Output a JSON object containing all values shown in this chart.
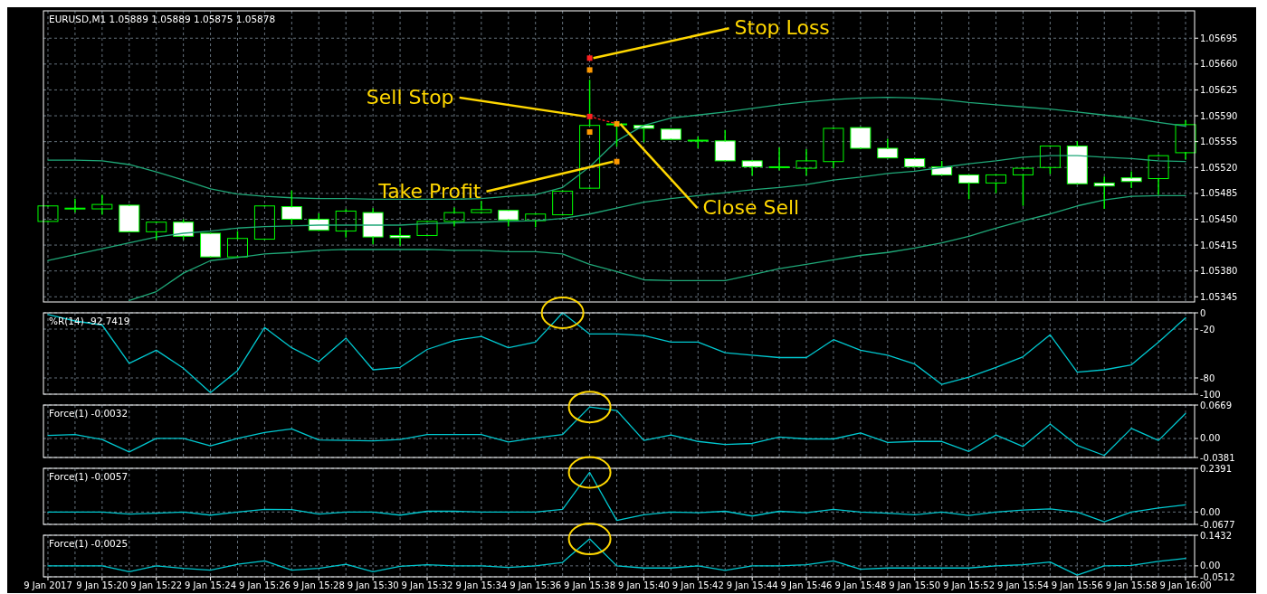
{
  "chart_data": [
    {
      "type": "candlestick",
      "title": "EURUSD,M1  1.05889 1.05889 1.05875 1.05878",
      "color": "#00ff00",
      "grid": true,
      "tick_labels": "y",
      "x": [
        "2017-01-09T15:18",
        "2017-01-09T15:19",
        "2017-01-09T15:20",
        "2017-01-09T15:21",
        "2017-01-09T15:22",
        "2017-01-09T15:23",
        "2017-01-09T15:24",
        "2017-01-09T15:25",
        "2017-01-09T15:26",
        "2017-01-09T15:27",
        "2017-01-09T15:28",
        "2017-01-09T15:29",
        "2017-01-09T15:30",
        "2017-01-09T15:31",
        "2017-01-09T15:32",
        "2017-01-09T15:33",
        "2017-01-09T15:34",
        "2017-01-09T15:35",
        "2017-01-09T15:36",
        "2017-01-09T15:37",
        "2017-01-09T15:38",
        "2017-01-09T15:39",
        "2017-01-09T15:40",
        "2017-01-09T15:41",
        "2017-01-09T15:42",
        "2017-01-09T15:43",
        "2017-01-09T15:44",
        "2017-01-09T15:45",
        "2017-01-09T15:46",
        "2017-01-09T15:47",
        "2017-01-09T15:48",
        "2017-01-09T15:49",
        "2017-01-09T15:50",
        "2017-01-09T15:51",
        "2017-01-09T15:52",
        "2017-01-09T15:53",
        "2017-01-09T15:54",
        "2017-01-09T15:55",
        "2017-01-09T15:56",
        "2017-01-09T15:57",
        "2017-01-09T15:58",
        "2017-01-09T15:59",
        "2017-01-09T16:00"
      ],
      "ohlc": [
        [
          1.05447,
          1.05468,
          1.05447,
          1.05468
        ],
        [
          1.05465,
          1.05477,
          1.0546,
          1.05465
        ],
        [
          1.05464,
          1.05482,
          1.05457,
          1.0547
        ],
        [
          1.05469,
          1.05469,
          1.05433,
          1.05433
        ],
        [
          1.05433,
          1.05446,
          1.05423,
          1.05446
        ],
        [
          1.05446,
          1.05449,
          1.05423,
          1.05427
        ],
        [
          1.05431,
          1.05431,
          1.05399,
          1.05399
        ],
        [
          1.05399,
          1.05433,
          1.05399,
          1.05424
        ],
        [
          1.05423,
          1.05468,
          1.05423,
          1.05468
        ],
        [
          1.05467,
          1.05488,
          1.05444,
          1.0545
        ],
        [
          1.0545,
          1.05457,
          1.05435,
          1.05435
        ],
        [
          1.05434,
          1.05463,
          1.05426,
          1.05461
        ],
        [
          1.05459,
          1.05464,
          1.05417,
          1.05426
        ],
        [
          1.05428,
          1.05438,
          1.05415,
          1.05425
        ],
        [
          1.05428,
          1.05447,
          1.05428,
          1.05447
        ],
        [
          1.05447,
          1.05465,
          1.05441,
          1.05459
        ],
        [
          1.05459,
          1.05474,
          1.05459,
          1.05463
        ],
        [
          1.05462,
          1.05462,
          1.05441,
          1.05449
        ],
        [
          1.05448,
          1.05457,
          1.0544,
          1.05457
        ],
        [
          1.05456,
          1.05488,
          1.05456,
          1.05488
        ],
        [
          1.05492,
          1.05638,
          1.05492,
          1.05577
        ],
        [
          1.05579,
          1.05579,
          1.05549,
          1.05579
        ],
        [
          1.05577,
          1.05577,
          1.05555,
          1.05573
        ],
        [
          1.05572,
          1.05572,
          1.05558,
          1.05558
        ],
        [
          1.05557,
          1.05561,
          1.05547,
          1.05557
        ],
        [
          1.05556,
          1.0557,
          1.05529,
          1.05529
        ],
        [
          1.05529,
          1.05529,
          1.0551,
          1.05521
        ],
        [
          1.05521,
          1.05546,
          1.05517,
          1.05521
        ],
        [
          1.05519,
          1.05544,
          1.0551,
          1.05529
        ],
        [
          1.05528,
          1.05573,
          1.0552,
          1.05573
        ],
        [
          1.05574,
          1.05574,
          1.05546,
          1.05546
        ],
        [
          1.05546,
          1.05558,
          1.05533,
          1.05533
        ],
        [
          1.05532,
          1.05532,
          1.05521,
          1.05521
        ],
        [
          1.05521,
          1.05528,
          1.0551,
          1.0551
        ],
        [
          1.0551,
          1.0551,
          1.05478,
          1.05499
        ],
        [
          1.05499,
          1.0551,
          1.05486,
          1.0551
        ],
        [
          1.0551,
          1.05519,
          1.05469,
          1.05519
        ],
        [
          1.0552,
          1.05549,
          1.05512,
          1.05549
        ],
        [
          1.05549,
          1.05555,
          1.05498,
          1.05498
        ],
        [
          1.05499,
          1.05507,
          1.05465,
          1.05495
        ],
        [
          1.05506,
          1.05514,
          1.05493,
          1.05501
        ],
        [
          1.05505,
          1.05536,
          1.05484,
          1.05536
        ],
        [
          1.0554,
          1.05583,
          1.05532,
          1.05578
        ]
      ],
      "series": [
        {
          "type": "line",
          "color": "#1fa878",
          "values": [
            1.0553,
            1.0553,
            1.05529,
            1.05524,
            1.05514,
            1.05503,
            1.05491,
            1.05484,
            1.05481,
            1.05479,
            1.05478,
            1.05478,
            1.05477,
            1.05477,
            1.05477,
            1.05477,
            1.05478,
            1.05481,
            1.05483,
            1.05493,
            1.05521,
            1.05556,
            1.05577,
            1.05587,
            1.05591,
            1.05595,
            1.056,
            1.05605,
            1.05609,
            1.05612,
            1.05614,
            1.05615,
            1.05614,
            1.05612,
            1.05608,
            1.05605,
            1.05602,
            1.05599,
            1.05595,
            1.05591,
            1.05587,
            1.05581,
            1.05576
          ]
        },
        {
          "type": "line",
          "color": "#1fa878",
          "values": [
            1.05394,
            1.05402,
            1.0541,
            1.05418,
            1.05426,
            1.05431,
            1.05434,
            1.05438,
            1.0544,
            1.05441,
            1.05442,
            1.05442,
            1.05442,
            1.05442,
            1.05444,
            1.05445,
            1.05446,
            1.05447,
            1.05448,
            1.05451,
            1.05457,
            1.05465,
            1.05473,
            1.05478,
            1.05482,
            1.05486,
            1.0549,
            1.05493,
            1.05497,
            1.05503,
            1.05507,
            1.05512,
            1.05515,
            1.0552,
            1.05525,
            1.05529,
            1.05534,
            1.05536,
            1.05536,
            1.05534,
            1.05532,
            1.05529,
            1.05528
          ]
        },
        {
          "type": "line",
          "color": "#1fa878",
          "values": [
            null,
            null,
            null,
            1.0534,
            1.05352,
            1.05377,
            1.05394,
            1.05398,
            1.05403,
            1.05405,
            1.05408,
            1.05409,
            1.05409,
            1.05409,
            1.05409,
            1.05408,
            1.05408,
            1.05406,
            1.05406,
            1.05403,
            1.05389,
            1.05379,
            1.05368,
            1.05367,
            1.05367,
            1.05367,
            1.05375,
            1.05383,
            1.05389,
            1.05395,
            1.05401,
            1.05405,
            1.05411,
            1.05418,
            1.05427,
            1.05438,
            1.05448,
            1.05457,
            1.05468,
            1.05476,
            1.05481,
            1.05482,
            1.05482
          ]
        },
        {
          "type": "scatter",
          "marker": "square",
          "x": [
            "2017-01-09T15:38",
            "2017-01-09T15:38",
            "2017-01-09T15:38",
            "2017-01-09T15:38",
            "2017-01-09T15:39",
            "2017-01-09T15:39"
          ],
          "values": [
            1.05668,
            1.05652,
            1.05589,
            1.05568,
            1.05579,
            1.05528
          ],
          "colors": [
            "#ff2020",
            "#ff9900",
            "#ff2020",
            "#ff9900",
            "#ff9900",
            "#ff9900"
          ]
        },
        {
          "type": "line",
          "line_style": "dotted",
          "color": "#ff2020",
          "x": [
            "2017-01-09T15:38",
            "2017-01-09T15:39"
          ],
          "values": [
            1.05589,
            1.05579
          ]
        }
      ],
      "annotations": [
        {
          "text": "Stop Loss",
          "x": "2017-01-09T15:38",
          "y": 1.05668
        },
        {
          "text": "Sell Stop",
          "x": "2017-01-09T15:38",
          "y": 1.05589
        },
        {
          "text": "Take Profit",
          "x": "2017-01-09T15:39",
          "y": 1.05528
        },
        {
          "text": "Close Sell",
          "x": "2017-01-09T15:39",
          "y": 1.05579
        }
      ],
      "xlim": [
        "2017-01-09T15:17:50",
        "2017-01-09T16:00:20"
      ],
      "xticks": [
        {
          "value": "2017-01-09T15:18",
          "label": null
        },
        {
          "value": "2017-01-09T15:19",
          "label": null
        },
        {
          "value": "2017-01-09T15:20",
          "label": null
        },
        {
          "value": "2017-01-09T15:21",
          "label": null
        },
        {
          "value": "2017-01-09T15:22",
          "label": null
        },
        {
          "value": "2017-01-09T15:23",
          "label": null
        },
        {
          "value": "2017-01-09T15:24",
          "label": null
        },
        {
          "value": "2017-01-09T15:25",
          "label": null
        },
        {
          "value": "2017-01-09T15:26",
          "label": null
        },
        {
          "value": "2017-01-09T15:27",
          "label": null
        },
        {
          "value": "2017-01-09T15:28",
          "label": null
        },
        {
          "value": "2017-01-09T15:29",
          "label": null
        },
        {
          "value": "2017-01-09T15:30",
          "label": null
        },
        {
          "value": "2017-01-09T15:31",
          "label": null
        },
        {
          "value": "2017-01-09T15:32",
          "label": null
        },
        {
          "value": "2017-01-09T15:33",
          "label": null
        },
        {
          "value": "2017-01-09T15:34",
          "label": null
        },
        {
          "value": "2017-01-09T15:35",
          "label": null
        },
        {
          "value": "2017-01-09T15:36",
          "label": null
        },
        {
          "value": "2017-01-09T15:37",
          "label": null
        },
        {
          "value": "2017-01-09T15:38",
          "label": null
        },
        {
          "value": "2017-01-09T15:39",
          "label": null
        },
        {
          "value": "2017-01-09T15:40",
          "label": null
        },
        {
          "value": "2017-01-09T15:41",
          "label": null
        },
        {
          "value": "2017-01-09T15:42",
          "label": null
        },
        {
          "value": "2017-01-09T15:43",
          "label": null
        },
        {
          "value": "2017-01-09T15:44",
          "label": null
        },
        {
          "value": "2017-01-09T15:45",
          "label": null
        },
        {
          "value": "2017-01-09T15:46",
          "label": null
        },
        {
          "value": "2017-01-09T15:47",
          "label": null
        },
        {
          "value": "2017-01-09T15:48",
          "label": null
        },
        {
          "value": "2017-01-09T15:49",
          "label": null
        },
        {
          "value": "2017-01-09T15:50",
          "label": null
        },
        {
          "value": "2017-01-09T15:51",
          "label": null
        },
        {
          "value": "2017-01-09T15:52",
          "label": null
        },
        {
          "value": "2017-01-09T15:53",
          "label": null
        },
        {
          "value": "2017-01-09T15:54",
          "label": null
        },
        {
          "value": "2017-01-09T15:55",
          "label": null
        },
        {
          "value": "2017-01-09T15:56",
          "label": null
        },
        {
          "value": "2017-01-09T15:57",
          "label": null
        },
        {
          "value": "2017-01-09T15:58",
          "label": null
        },
        {
          "value": "2017-01-09T15:59",
          "label": null
        },
        {
          "value": "2017-01-09T16:00",
          "label": null
        }
      ],
      "ylim": [
        1.05338,
        1.05732
      ],
      "yticks": [
        1.05345,
        {
          "value": 1.0538,
          "label": "1.05380"
        },
        1.05415,
        {
          "value": 1.0545,
          "label": "1.05450"
        },
        1.05485,
        {
          "value": 1.0552,
          "label": "1.05520"
        },
        1.05555,
        {
          "value": 1.0559,
          "label": "1.05590"
        },
        1.05625,
        {
          "value": 1.0566,
          "label": "1.05660"
        },
        1.05695
      ]
    },
    {
      "type": "line",
      "title": "%R(14) -92.7419",
      "color": "#00c8d0",
      "grid": true,
      "tick_labels": "y",
      "x": [
        "2017-01-09T15:18",
        "2017-01-09T15:19",
        "2017-01-09T15:20",
        "2017-01-09T15:21",
        "2017-01-09T15:22",
        "2017-01-09T15:23",
        "2017-01-09T15:24",
        "2017-01-09T15:25",
        "2017-01-09T15:26",
        "2017-01-09T15:27",
        "2017-01-09T15:28",
        "2017-01-09T15:29",
        "2017-01-09T15:30",
        "2017-01-09T15:31",
        "2017-01-09T15:32",
        "2017-01-09T15:33",
        "2017-01-09T15:34",
        "2017-01-09T15:35",
        "2017-01-09T15:36",
        "2017-01-09T15:37",
        "2017-01-09T15:38",
        "2017-01-09T15:39",
        "2017-01-09T15:40",
        "2017-01-09T15:41",
        "2017-01-09T15:42",
        "2017-01-09T15:43",
        "2017-01-09T15:44",
        "2017-01-09T15:45",
        "2017-01-09T15:46",
        "2017-01-09T15:47",
        "2017-01-09T15:48",
        "2017-01-09T15:49",
        "2017-01-09T15:50",
        "2017-01-09T15:51",
        "2017-01-09T15:52",
        "2017-01-09T15:53",
        "2017-01-09T15:54",
        "2017-01-09T15:55",
        "2017-01-09T15:56",
        "2017-01-09T15:57",
        "2017-01-09T15:58",
        "2017-01-09T15:59",
        "2017-01-09T16:00"
      ],
      "xlim": [
        "2017-01-09T15:17:50",
        "2017-01-09T16:00:20"
      ],
      "xticks": [
        {
          "value": "2017-01-09T15:18",
          "label": null
        },
        {
          "value": "2017-01-09T15:19",
          "label": null
        },
        {
          "value": "2017-01-09T15:20",
          "label": null
        },
        {
          "value": "2017-01-09T15:21",
          "label": null
        },
        {
          "value": "2017-01-09T15:22",
          "label": null
        },
        {
          "value": "2017-01-09T15:23",
          "label": null
        },
        {
          "value": "2017-01-09T15:24",
          "label": null
        },
        {
          "value": "2017-01-09T15:25",
          "label": null
        },
        {
          "value": "2017-01-09T15:26",
          "label": null
        },
        {
          "value": "2017-01-09T15:27",
          "label": null
        },
        {
          "value": "2017-01-09T15:28",
          "label": null
        },
        {
          "value": "2017-01-09T15:29",
          "label": null
        },
        {
          "value": "2017-01-09T15:30",
          "label": null
        },
        {
          "value": "2017-01-09T15:31",
          "label": null
        },
        {
          "value": "2017-01-09T15:32",
          "label": null
        },
        {
          "value": "2017-01-09T15:33",
          "label": null
        },
        {
          "value": "2017-01-09T15:34",
          "label": null
        },
        {
          "value": "2017-01-09T15:35",
          "label": null
        },
        {
          "value": "2017-01-09T15:36",
          "label": null
        },
        {
          "value": "2017-01-09T15:37",
          "label": null
        },
        {
          "value": "2017-01-09T15:38",
          "label": null
        },
        {
          "value": "2017-01-09T15:39",
          "label": null
        },
        {
          "value": "2017-01-09T15:40",
          "label": null
        },
        {
          "value": "2017-01-09T15:41",
          "label": null
        },
        {
          "value": "2017-01-09T15:42",
          "label": null
        },
        {
          "value": "2017-01-09T15:43",
          "label": null
        },
        {
          "value": "2017-01-09T15:44",
          "label": null
        },
        {
          "value": "2017-01-09T15:45",
          "label": null
        },
        {
          "value": "2017-01-09T15:46",
          "label": null
        },
        {
          "value": "2017-01-09T15:47",
          "label": null
        },
        {
          "value": "2017-01-09T15:48",
          "label": null
        },
        {
          "value": "2017-01-09T15:49",
          "label": null
        },
        {
          "value": "2017-01-09T15:50",
          "label": null
        },
        {
          "value": "2017-01-09T15:51",
          "label": null
        },
        {
          "value": "2017-01-09T15:52",
          "label": null
        },
        {
          "value": "2017-01-09T15:53",
          "label": null
        },
        {
          "value": "2017-01-09T15:54",
          "label": null
        },
        {
          "value": "2017-01-09T15:55",
          "label": null
        },
        {
          "value": "2017-01-09T15:56",
          "label": null
        },
        {
          "value": "2017-01-09T15:57",
          "label": null
        },
        {
          "value": "2017-01-09T15:58",
          "label": null
        },
        {
          "value": "2017-01-09T15:59",
          "label": null
        },
        {
          "value": "2017-01-09T16:00",
          "label": null
        }
      ],
      "values": [
        -2,
        -10,
        -15,
        -62,
        -46,
        -68,
        -98,
        -71,
        -18,
        -43,
        -60,
        -31,
        -70,
        -67,
        -45,
        -34,
        -29,
        -43,
        -36,
        0,
        -26,
        -26,
        -28,
        -36,
        -36,
        -49,
        -52,
        -55,
        -55,
        -33,
        -46,
        -52,
        -63,
        -88,
        -79,
        -67,
        -54,
        -27,
        -73,
        -70,
        -64,
        -36,
        -6
      ],
      "ylim": [
        -100,
        0
      ],
      "yticks": [
        0,
        -20,
        -80,
        -100
      ]
    },
    {
      "type": "line",
      "title": "Force(1) -0.0032",
      "color": "#00c8d0",
      "grid": true,
      "tick_labels": "y",
      "x": [
        "2017-01-09T15:18",
        "2017-01-09T15:19",
        "2017-01-09T15:20",
        "2017-01-09T15:21",
        "2017-01-09T15:22",
        "2017-01-09T15:23",
        "2017-01-09T15:24",
        "2017-01-09T15:25",
        "2017-01-09T15:26",
        "2017-01-09T15:27",
        "2017-01-09T15:28",
        "2017-01-09T15:29",
        "2017-01-09T15:30",
        "2017-01-09T15:31",
        "2017-01-09T15:32",
        "2017-01-09T15:33",
        "2017-01-09T15:34",
        "2017-01-09T15:35",
        "2017-01-09T15:36",
        "2017-01-09T15:37",
        "2017-01-09T15:38",
        "2017-01-09T15:39",
        "2017-01-09T15:40",
        "2017-01-09T15:41",
        "2017-01-09T15:42",
        "2017-01-09T15:43",
        "2017-01-09T15:44",
        "2017-01-09T15:45",
        "2017-01-09T15:46",
        "2017-01-09T15:47",
        "2017-01-09T15:48",
        "2017-01-09T15:49",
        "2017-01-09T15:50",
        "2017-01-09T15:51",
        "2017-01-09T15:52",
        "2017-01-09T15:53",
        "2017-01-09T15:54",
        "2017-01-09T15:55",
        "2017-01-09T15:56",
        "2017-01-09T15:57",
        "2017-01-09T15:58",
        "2017-01-09T15:59",
        "2017-01-09T16:00"
      ],
      "xlim": [
        "2017-01-09T15:17:50",
        "2017-01-09T16:00:20"
      ],
      "xticks": [
        {
          "value": "2017-01-09T15:18",
          "label": null
        },
        {
          "value": "2017-01-09T15:19",
          "label": null
        },
        {
          "value": "2017-01-09T15:20",
          "label": null
        },
        {
          "value": "2017-01-09T15:21",
          "label": null
        },
        {
          "value": "2017-01-09T15:22",
          "label": null
        },
        {
          "value": "2017-01-09T15:23",
          "label": null
        },
        {
          "value": "2017-01-09T15:24",
          "label": null
        },
        {
          "value": "2017-01-09T15:25",
          "label": null
        },
        {
          "value": "2017-01-09T15:26",
          "label": null
        },
        {
          "value": "2017-01-09T15:27",
          "label": null
        },
        {
          "value": "2017-01-09T15:28",
          "label": null
        },
        {
          "value": "2017-01-09T15:29",
          "label": null
        },
        {
          "value": "2017-01-09T15:30",
          "label": null
        },
        {
          "value": "2017-01-09T15:31",
          "label": null
        },
        {
          "value": "2017-01-09T15:32",
          "label": null
        },
        {
          "value": "2017-01-09T15:33",
          "label": null
        },
        {
          "value": "2017-01-09T15:34",
          "label": null
        },
        {
          "value": "2017-01-09T15:35",
          "label": null
        },
        {
          "value": "2017-01-09T15:36",
          "label": null
        },
        {
          "value": "2017-01-09T15:37",
          "label": null
        },
        {
          "value": "2017-01-09T15:38",
          "label": null
        },
        {
          "value": "2017-01-09T15:39",
          "label": null
        },
        {
          "value": "2017-01-09T15:40",
          "label": null
        },
        {
          "value": "2017-01-09T15:41",
          "label": null
        },
        {
          "value": "2017-01-09T15:42",
          "label": null
        },
        {
          "value": "2017-01-09T15:43",
          "label": null
        },
        {
          "value": "2017-01-09T15:44",
          "label": null
        },
        {
          "value": "2017-01-09T15:45",
          "label": null
        },
        {
          "value": "2017-01-09T15:46",
          "label": null
        },
        {
          "value": "2017-01-09T15:47",
          "label": null
        },
        {
          "value": "2017-01-09T15:48",
          "label": null
        },
        {
          "value": "2017-01-09T15:49",
          "label": null
        },
        {
          "value": "2017-01-09T15:50",
          "label": null
        },
        {
          "value": "2017-01-09T15:51",
          "label": null
        },
        {
          "value": "2017-01-09T15:52",
          "label": null
        },
        {
          "value": "2017-01-09T15:53",
          "label": null
        },
        {
          "value": "2017-01-09T15:54",
          "label": null
        },
        {
          "value": "2017-01-09T15:55",
          "label": null
        },
        {
          "value": "2017-01-09T15:56",
          "label": null
        },
        {
          "value": "2017-01-09T15:57",
          "label": null
        },
        {
          "value": "2017-01-09T15:58",
          "label": null
        },
        {
          "value": "2017-01-09T15:59",
          "label": null
        },
        {
          "value": "2017-01-09T16:00",
          "label": null
        }
      ],
      "values": [
        0.006,
        0.008,
        -0.002,
        -0.027,
        0,
        0,
        -0.015,
        0,
        0.012,
        0.019,
        -0.003,
        -0.004,
        -0.005,
        -0.002,
        0.008,
        0.008,
        0.008,
        -0.007,
        0.001,
        0.008,
        0.063,
        0.056,
        -0.004,
        0.007,
        -0.006,
        -0.012,
        -0.01,
        0.003,
        -0.001,
        -0.001,
        0.011,
        -0.008,
        -0.006,
        -0.006,
        -0.026,
        0.007,
        -0.016,
        0.029,
        -0.014,
        -0.034,
        0.02,
        -0.004,
        0.05
      ],
      "ylim": [
        -0.0381,
        0.0669
      ],
      "yticks": [
        0.0669,
        {
          "value": 0,
          "label": "0.00"
        },
        -0.0381
      ]
    },
    {
      "type": "line",
      "title": "Force(1) -0.0057",
      "color": "#00c8d0",
      "grid": true,
      "tick_labels": "y",
      "x": [
        "2017-01-09T15:18",
        "2017-01-09T15:19",
        "2017-01-09T15:20",
        "2017-01-09T15:21",
        "2017-01-09T15:22",
        "2017-01-09T15:23",
        "2017-01-09T15:24",
        "2017-01-09T15:25",
        "2017-01-09T15:26",
        "2017-01-09T15:27",
        "2017-01-09T15:28",
        "2017-01-09T15:29",
        "2017-01-09T15:30",
        "2017-01-09T15:31",
        "2017-01-09T15:32",
        "2017-01-09T15:33",
        "2017-01-09T15:34",
        "2017-01-09T15:35",
        "2017-01-09T15:36",
        "2017-01-09T15:37",
        "2017-01-09T15:38",
        "2017-01-09T15:39",
        "2017-01-09T15:40",
        "2017-01-09T15:41",
        "2017-01-09T15:42",
        "2017-01-09T15:43",
        "2017-01-09T15:44",
        "2017-01-09T15:45",
        "2017-01-09T15:46",
        "2017-01-09T15:47",
        "2017-01-09T15:48",
        "2017-01-09T15:49",
        "2017-01-09T15:50",
        "2017-01-09T15:51",
        "2017-01-09T15:52",
        "2017-01-09T15:53",
        "2017-01-09T15:54",
        "2017-01-09T15:55",
        "2017-01-09T15:56",
        "2017-01-09T15:57",
        "2017-01-09T15:58",
        "2017-01-09T15:59",
        "2017-01-09T16:00"
      ],
      "xlim": [
        "2017-01-09T15:17:50",
        "2017-01-09T16:00:20"
      ],
      "xticks": [
        {
          "value": "2017-01-09T15:18",
          "label": null
        },
        {
          "value": "2017-01-09T15:19",
          "label": null
        },
        {
          "value": "2017-01-09T15:20",
          "label": null
        },
        {
          "value": "2017-01-09T15:21",
          "label": null
        },
        {
          "value": "2017-01-09T15:22",
          "label": null
        },
        {
          "value": "2017-01-09T15:23",
          "label": null
        },
        {
          "value": "2017-01-09T15:24",
          "label": null
        },
        {
          "value": "2017-01-09T15:25",
          "label": null
        },
        {
          "value": "2017-01-09T15:26",
          "label": null
        },
        {
          "value": "2017-01-09T15:27",
          "label": null
        },
        {
          "value": "2017-01-09T15:28",
          "label": null
        },
        {
          "value": "2017-01-09T15:29",
          "label": null
        },
        {
          "value": "2017-01-09T15:30",
          "label": null
        },
        {
          "value": "2017-01-09T15:31",
          "label": null
        },
        {
          "value": "2017-01-09T15:32",
          "label": null
        },
        {
          "value": "2017-01-09T15:33",
          "label": null
        },
        {
          "value": "2017-01-09T15:34",
          "label": null
        },
        {
          "value": "2017-01-09T15:35",
          "label": null
        },
        {
          "value": "2017-01-09T15:36",
          "label": null
        },
        {
          "value": "2017-01-09T15:37",
          "label": null
        },
        {
          "value": "2017-01-09T15:38",
          "label": null
        },
        {
          "value": "2017-01-09T15:39",
          "label": null
        },
        {
          "value": "2017-01-09T15:40",
          "label": null
        },
        {
          "value": "2017-01-09T15:41",
          "label": null
        },
        {
          "value": "2017-01-09T15:42",
          "label": null
        },
        {
          "value": "2017-01-09T15:43",
          "label": null
        },
        {
          "value": "2017-01-09T15:44",
          "label": null
        },
        {
          "value": "2017-01-09T15:45",
          "label": null
        },
        {
          "value": "2017-01-09T15:46",
          "label": null
        },
        {
          "value": "2017-01-09T15:47",
          "label": null
        },
        {
          "value": "2017-01-09T15:48",
          "label": null
        },
        {
          "value": "2017-01-09T15:49",
          "label": null
        },
        {
          "value": "2017-01-09T15:50",
          "label": null
        },
        {
          "value": "2017-01-09T15:51",
          "label": null
        },
        {
          "value": "2017-01-09T15:52",
          "label": null
        },
        {
          "value": "2017-01-09T15:53",
          "label": null
        },
        {
          "value": "2017-01-09T15:54",
          "label": null
        },
        {
          "value": "2017-01-09T15:55",
          "label": null
        },
        {
          "value": "2017-01-09T15:56",
          "label": null
        },
        {
          "value": "2017-01-09T15:57",
          "label": null
        },
        {
          "value": "2017-01-09T15:58",
          "label": null
        },
        {
          "value": "2017-01-09T15:59",
          "label": null
        },
        {
          "value": "2017-01-09T16:00",
          "label": null
        }
      ],
      "values": [
        0,
        0,
        0,
        -0.011,
        -0.006,
        0,
        -0.017,
        0,
        0.015,
        0.013,
        -0.011,
        0,
        0,
        -0.017,
        0.004,
        0.004,
        0,
        0,
        0,
        0.015,
        0.217,
        -0.046,
        -0.015,
        0,
        -0.004,
        0.004,
        -0.022,
        0.004,
        -0.004,
        0.015,
        0,
        -0.006,
        -0.015,
        0,
        -0.019,
        0,
        0.011,
        0.017,
        0,
        -0.054,
        0,
        0.022,
        0.039
      ],
      "ylim": [
        -0.0677,
        0.2391
      ],
      "yticks": [
        0.2391,
        {
          "value": 0,
          "label": "0.00"
        },
        -0.0677
      ]
    },
    {
      "type": "line",
      "title": "Force(1) -0.0025",
      "color": "#00c8d0",
      "grid": true,
      "x": [
        "2017-01-09T15:18",
        "2017-01-09T15:19",
        "2017-01-09T15:20",
        "2017-01-09T15:21",
        "2017-01-09T15:22",
        "2017-01-09T15:23",
        "2017-01-09T15:24",
        "2017-01-09T15:25",
        "2017-01-09T15:26",
        "2017-01-09T15:27",
        "2017-01-09T15:28",
        "2017-01-09T15:29",
        "2017-01-09T15:30",
        "2017-01-09T15:31",
        "2017-01-09T15:32",
        "2017-01-09T15:33",
        "2017-01-09T15:34",
        "2017-01-09T15:35",
        "2017-01-09T15:36",
        "2017-01-09T15:37",
        "2017-01-09T15:38",
        "2017-01-09T15:39",
        "2017-01-09T15:40",
        "2017-01-09T15:41",
        "2017-01-09T15:42",
        "2017-01-09T15:43",
        "2017-01-09T15:44",
        "2017-01-09T15:45",
        "2017-01-09T15:46",
        "2017-01-09T15:47",
        "2017-01-09T15:48",
        "2017-01-09T15:49",
        "2017-01-09T15:50",
        "2017-01-09T15:51",
        "2017-01-09T15:52",
        "2017-01-09T15:53",
        "2017-01-09T15:54",
        "2017-01-09T15:55",
        "2017-01-09T15:56",
        "2017-01-09T15:57",
        "2017-01-09T15:58",
        "2017-01-09T15:59",
        "2017-01-09T16:00"
      ],
      "xlim": [
        "2017-01-09T15:17:50",
        "2017-01-09T16:00:20"
      ],
      "xticks": [
        {
          "value": "2017-01-09T15:18",
          "label": "9 Jan 2017"
        },
        {
          "value": "2017-01-09T15:19",
          "label": null
        },
        {
          "value": "2017-01-09T15:20",
          "label": "9 Jan 15:20"
        },
        {
          "value": "2017-01-09T15:21",
          "label": null
        },
        {
          "value": "2017-01-09T15:22",
          "label": "9 Jan 15:22"
        },
        {
          "value": "2017-01-09T15:23",
          "label": null
        },
        {
          "value": "2017-01-09T15:24",
          "label": "9 Jan 15:24"
        },
        {
          "value": "2017-01-09T15:25",
          "label": null
        },
        {
          "value": "2017-01-09T15:26",
          "label": "9 Jan 15:26"
        },
        {
          "value": "2017-01-09T15:27",
          "label": null
        },
        {
          "value": "2017-01-09T15:28",
          "label": "9 Jan 15:28"
        },
        {
          "value": "2017-01-09T15:29",
          "label": null
        },
        {
          "value": "2017-01-09T15:30",
          "label": "9 Jan 15:30"
        },
        {
          "value": "2017-01-09T15:31",
          "label": null
        },
        {
          "value": "2017-01-09T15:32",
          "label": "9 Jan 15:32"
        },
        {
          "value": "2017-01-09T15:33",
          "label": null
        },
        {
          "value": "2017-01-09T15:34",
          "label": "9 Jan 15:34"
        },
        {
          "value": "2017-01-09T15:35",
          "label": null
        },
        {
          "value": "2017-01-09T15:36",
          "label": "9 Jan 15:36"
        },
        {
          "value": "2017-01-09T15:37",
          "label": null
        },
        {
          "value": "2017-01-09T15:38",
          "label": "9 Jan 15:38"
        },
        {
          "value": "2017-01-09T15:39",
          "label": null
        },
        {
          "value": "2017-01-09T15:40",
          "label": "9 Jan 15:40"
        },
        {
          "value": "2017-01-09T15:41",
          "label": null
        },
        {
          "value": "2017-01-09T15:42",
          "label": "9 Jan 15:42"
        },
        {
          "value": "2017-01-09T15:43",
          "label": null
        },
        {
          "value": "2017-01-09T15:44",
          "label": "9 Jan 15:44"
        },
        {
          "value": "2017-01-09T15:45",
          "label": null
        },
        {
          "value": "2017-01-09T15:46",
          "label": "9 Jan 15:46"
        },
        {
          "value": "2017-01-09T15:47",
          "label": null
        },
        {
          "value": "2017-01-09T15:48",
          "label": "9 Jan 15:48"
        },
        {
          "value": "2017-01-09T15:49",
          "label": null
        },
        {
          "value": "2017-01-09T15:50",
          "label": "9 Jan 15:50"
        },
        {
          "value": "2017-01-09T15:51",
          "label": null
        },
        {
          "value": "2017-01-09T15:52",
          "label": "9 Jan 15:52"
        },
        {
          "value": "2017-01-09T15:53",
          "label": null
        },
        {
          "value": "2017-01-09T15:54",
          "label": "9 Jan 15:54"
        },
        {
          "value": "2017-01-09T15:55",
          "label": null
        },
        {
          "value": "2017-01-09T15:56",
          "label": "9 Jan 15:56"
        },
        {
          "value": "2017-01-09T15:57",
          "label": null
        },
        {
          "value": "2017-01-09T15:58",
          "label": "9 Jan 15:58"
        },
        {
          "value": "2017-01-09T15:59",
          "label": null
        },
        {
          "value": "2017-01-09T16:00",
          "label": "9 Jan 16:00"
        }
      ],
      "values": [
        0,
        0,
        0,
        -0.027,
        0,
        -0.012,
        -0.02,
        0.007,
        0.023,
        -0.02,
        -0.012,
        0.007,
        -0.027,
        -0.002,
        0.005,
        0,
        0,
        -0.007,
        0,
        0.016,
        0.126,
        0,
        -0.01,
        -0.01,
        0,
        -0.021,
        0,
        0,
        0.005,
        0.023,
        -0.016,
        -0.01,
        -0.01,
        -0.01,
        -0.01,
        0,
        0.005,
        0.018,
        -0.043,
        0,
        0.002,
        0.021,
        0.035
      ],
      "ylim": [
        -0.0512,
        0.1432
      ],
      "yticks": [
        0.1432,
        {
          "value": 0,
          "label": "0.00"
        },
        -0.0512
      ]
    }
  ]
}
